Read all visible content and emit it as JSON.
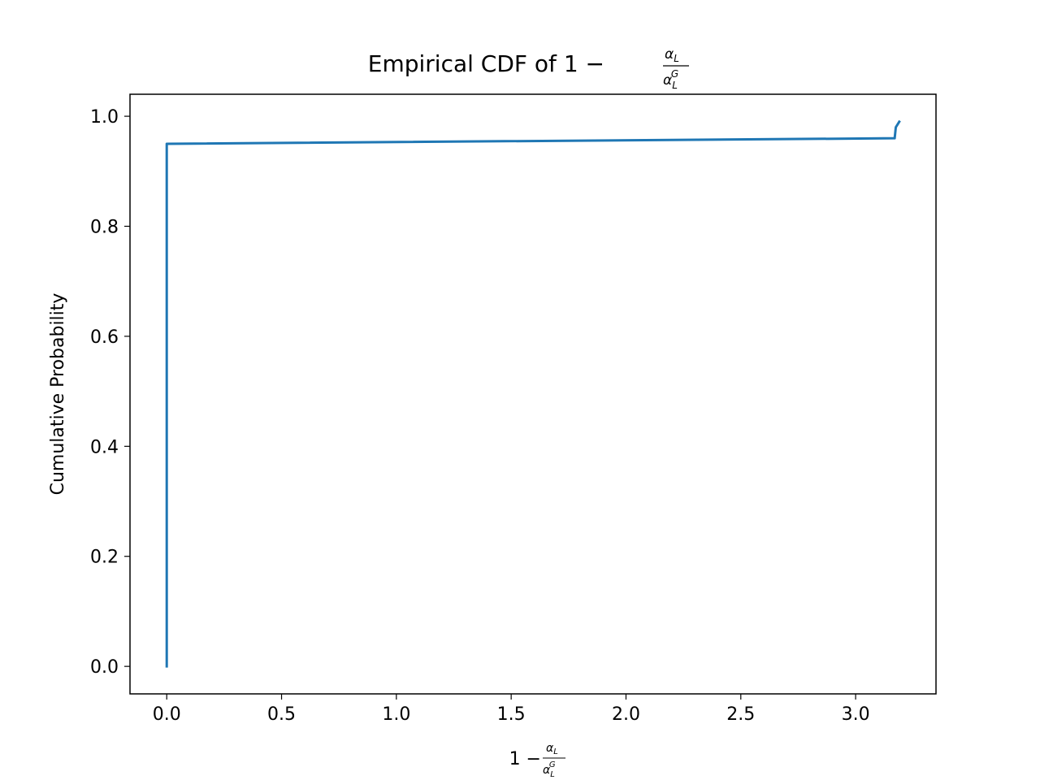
{
  "chart_data": {
    "type": "line",
    "title": {
      "prefix": "Empirical CDF of 1 − ",
      "frac_num": "α",
      "frac_num_sub": "L",
      "frac_den": "α",
      "frac_den_sub": "L",
      "frac_den_sup": "G"
    },
    "xlabel": {
      "prefix": "1 − ",
      "frac_num": "α",
      "frac_num_sub": "L",
      "frac_den": "α",
      "frac_den_sub": "L",
      "frac_den_sup": "G"
    },
    "ylabel": "Cumulative Probability",
    "xlim": [
      -0.16,
      3.35
    ],
    "ylim": [
      -0.05,
      1.04
    ],
    "xticks": [
      0.0,
      0.5,
      1.0,
      1.5,
      2.0,
      2.5,
      3.0
    ],
    "xtick_labels": [
      "0.0",
      "0.5",
      "1.0",
      "1.5",
      "2.0",
      "2.5",
      "3.0"
    ],
    "yticks": [
      0.0,
      0.2,
      0.4,
      0.6,
      0.8,
      1.0
    ],
    "ytick_labels": [
      "0.0",
      "0.2",
      "0.4",
      "0.6",
      "0.8",
      "1.0"
    ],
    "grid": false,
    "series": [
      {
        "color": "#1f77b4",
        "x": [
          0.0,
          0.0,
          3.17,
          3.175,
          3.19
        ],
        "y": [
          0.0,
          0.95,
          0.96,
          0.98,
          0.99
        ]
      }
    ]
  }
}
